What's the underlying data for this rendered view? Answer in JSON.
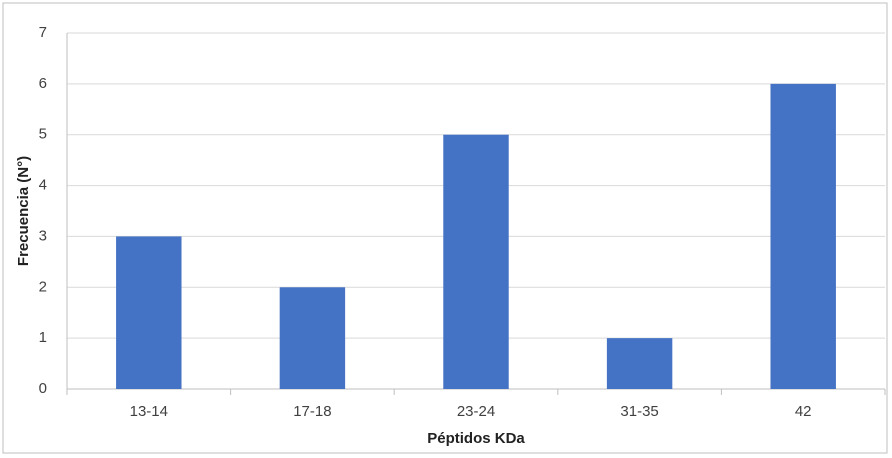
{
  "chart_data": {
    "type": "bar",
    "x_label": "Péptidos KDa",
    "y_label": "Frecuencia (N°)",
    "categories": [
      "13-14",
      "17-18",
      "23-24",
      "31-35",
      "42"
    ],
    "values": [
      3,
      2,
      5,
      1,
      6
    ],
    "color": "#4472c4",
    "ylim": [
      0,
      7
    ],
    "yticks": [
      0,
      1,
      2,
      3,
      4,
      5,
      6,
      7
    ],
    "grid": true
  }
}
